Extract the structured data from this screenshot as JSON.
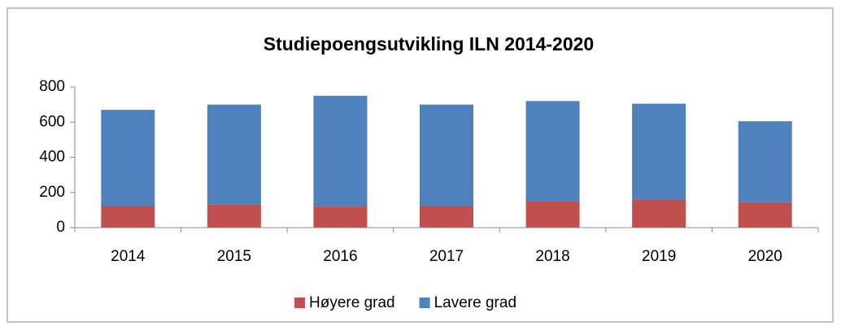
{
  "chart_data": {
    "type": "stacked_bar",
    "title": "Studiepoengsutvikling ILN 2014-2020",
    "categories": [
      "2014",
      "2015",
      "2016",
      "2017",
      "2018",
      "2019",
      "2020"
    ],
    "series": [
      {
        "name": "Høyere grad",
        "color": "#c0504d",
        "values": [
          125,
          130,
          120,
          125,
          150,
          160,
          145
        ]
      },
      {
        "name": "Lavere grad",
        "color": "#4f81bd",
        "values": [
          545,
          570,
          630,
          575,
          570,
          545,
          460
        ]
      }
    ],
    "ylim": [
      0,
      800
    ],
    "yticks": [
      0,
      200,
      400,
      600,
      800
    ],
    "grid": false,
    "legend": "bottom"
  }
}
